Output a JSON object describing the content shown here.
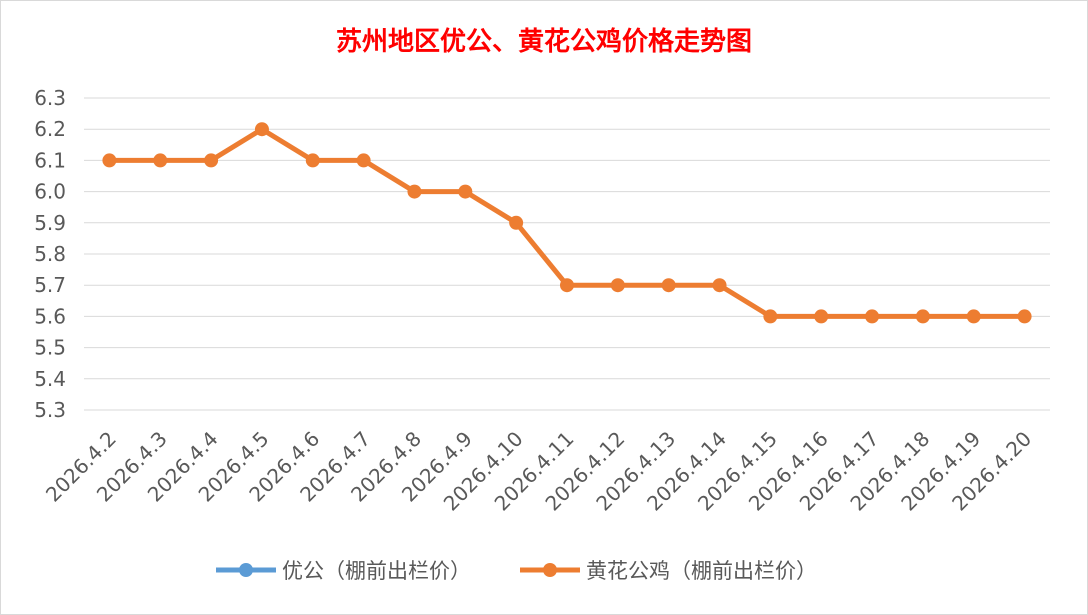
{
  "chart_data": {
    "type": "line",
    "title": "苏州地区优公、黄花公鸡价格走势图",
    "xlabel": "",
    "ylabel": "",
    "categories": [
      "2026.4.2",
      "2026.4.3",
      "2026.4.4",
      "2026.4.5",
      "2026.4.6",
      "2026.4.7",
      "2026.4.8",
      "2026.4.9",
      "2026.4.10",
      "2026.4.11",
      "2026.4.12",
      "2026.4.13",
      "2026.4.14",
      "2026.4.15",
      "2026.4.16",
      "2026.4.17",
      "2026.4.18",
      "2026.4.19",
      "2026.4.20"
    ],
    "ylim": [
      5.3,
      6.3
    ],
    "yticks": [
      "5.3",
      "5.4",
      "5.5",
      "5.6",
      "5.7",
      "5.8",
      "5.9",
      "6.0",
      "6.1",
      "6.2",
      "6.3"
    ],
    "grid": true,
    "legend_position": "bottom",
    "series": [
      {
        "name": "优公（棚前出栏价）",
        "color": "#5b9bd5",
        "values": [
          null,
          null,
          null,
          null,
          null,
          null,
          null,
          null,
          null,
          null,
          null,
          null,
          null,
          null,
          null,
          null,
          null,
          null,
          null
        ]
      },
      {
        "name": "黄花公鸡（棚前出栏价）",
        "color": "#ed7d31",
        "values": [
          6.1,
          6.1,
          6.1,
          6.2,
          6.1,
          6.1,
          6.0,
          6.0,
          5.9,
          5.7,
          5.7,
          5.7,
          5.7,
          5.6,
          5.6,
          5.6,
          5.6,
          5.6,
          5.6
        ]
      }
    ]
  }
}
